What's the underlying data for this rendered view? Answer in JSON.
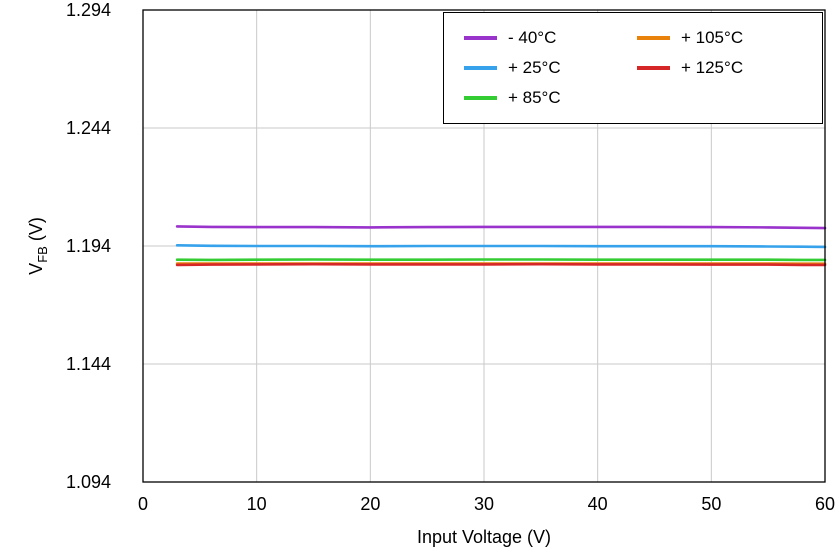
{
  "figure": {
    "background": "#ffffff",
    "grid_color": "#c9c9c9",
    "border_color": "#000000"
  },
  "axes": {
    "x": {
      "label": "Input Voltage (V)"
    },
    "y": {
      "label_main": "V",
      "label_sub": "FB",
      "label_rest": " (V)"
    }
  },
  "chart_data": {
    "type": "line",
    "title": "",
    "xlabel": "Input Voltage (V)",
    "ylabel": "VFB (V)",
    "xlim": [
      0,
      60
    ],
    "ylim": [
      1.094,
      1.294
    ],
    "x_ticks": [
      0,
      10,
      20,
      30,
      40,
      50,
      60
    ],
    "y_ticks": [
      1.094,
      1.144,
      1.194,
      1.244,
      1.294
    ],
    "grid": true,
    "grid_color": "#c9c9c9",
    "legend_position": "top-right",
    "legend_columns": 2,
    "series": [
      {
        "name": "- 40°C",
        "color": "#9933CC",
        "x": [
          3,
          6,
          10,
          15,
          20,
          25,
          30,
          35,
          40,
          45,
          50,
          55,
          58,
          60
        ],
        "y": [
          1.2023,
          1.2021,
          1.202,
          1.202,
          1.2019,
          1.202,
          1.2021,
          1.2021,
          1.2021,
          1.2021,
          1.202,
          1.2019,
          1.2017,
          1.2016
        ]
      },
      {
        "name": "+ 25°C",
        "color": "#36A2EB",
        "x": [
          3,
          6,
          10,
          15,
          20,
          25,
          30,
          35,
          40,
          45,
          50,
          55,
          58,
          60
        ],
        "y": [
          1.1943,
          1.1941,
          1.194,
          1.194,
          1.1939,
          1.194,
          1.194,
          1.194,
          1.1939,
          1.1939,
          1.1939,
          1.1938,
          1.1937,
          1.1936
        ]
      },
      {
        "name": "+ 85°C",
        "color": "#33CC33",
        "x": [
          3,
          6,
          10,
          15,
          20,
          25,
          30,
          35,
          40,
          45,
          50,
          55,
          58,
          60
        ],
        "y": [
          1.1882,
          1.1881,
          1.1882,
          1.1883,
          1.1882,
          1.1882,
          1.1883,
          1.1883,
          1.1882,
          1.1882,
          1.1882,
          1.1882,
          1.1881,
          1.1881
        ]
      },
      {
        "name": "+ 105°C",
        "color": "#E8820A",
        "x": [
          3,
          6,
          10,
          15,
          20,
          25,
          30,
          35,
          40,
          45,
          50,
          55,
          58,
          60
        ],
        "y": [
          1.1866,
          1.1866,
          1.1866,
          1.1866,
          1.1866,
          1.1866,
          1.1866,
          1.1866,
          1.1866,
          1.1866,
          1.1866,
          1.1866,
          1.1865,
          1.1865
        ]
      },
      {
        "name": "+ 125°C",
        "color": "#D62728",
        "x": [
          3,
          6,
          10,
          15,
          20,
          25,
          30,
          35,
          40,
          45,
          50,
          55,
          58,
          60
        ],
        "y": [
          1.186,
          1.1861,
          1.1862,
          1.1863,
          1.1862,
          1.1862,
          1.1862,
          1.1863,
          1.1862,
          1.1862,
          1.1861,
          1.1861,
          1.186,
          1.186
        ]
      }
    ]
  }
}
